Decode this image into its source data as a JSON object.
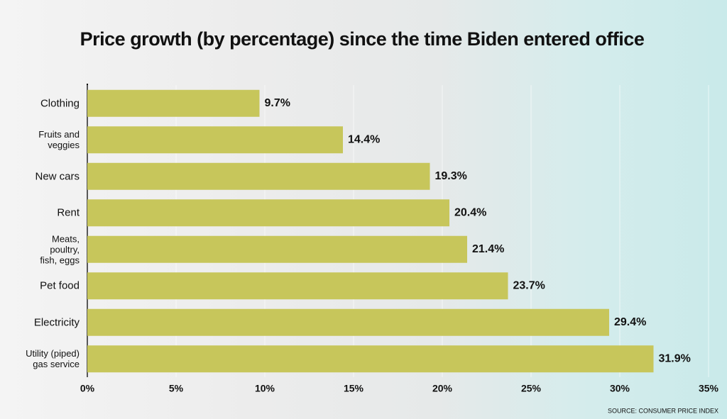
{
  "chart_data": {
    "type": "hbar",
    "title": "Price growth (by percentage) since the time Biden entered office",
    "source": "SOURCE: CONSUMER PRICE INDEX",
    "categories": [
      "Clothing",
      "Fruits and\nveggies",
      "New cars",
      "Rent",
      "Meats,\npoultry,\nfish, eggs",
      "Pet food",
      "Electricity",
      "Utility (piped)\ngas service"
    ],
    "values": [
      9.7,
      14.4,
      19.3,
      20.4,
      21.4,
      23.7,
      29.4,
      31.9
    ],
    "value_labels": [
      "9.7%",
      "14.4%",
      "19.3%",
      "20.4%",
      "21.4%",
      "23.7%",
      "29.4%",
      "31.9%"
    ],
    "color": "#c7c65b",
    "xlim": [
      0,
      35
    ],
    "xticks": [
      {
        "value": 0,
        "label": "0%"
      },
      {
        "value": 5,
        "label": "5%"
      },
      {
        "value": 10,
        "label": "10%"
      },
      {
        "value": 15,
        "label": "15%"
      },
      {
        "value": 20,
        "label": "20%"
      },
      {
        "value": 25,
        "label": "25%"
      },
      {
        "value": 30,
        "label": "30%"
      },
      {
        "value": 35,
        "label": "35%"
      }
    ],
    "grid": true
  }
}
